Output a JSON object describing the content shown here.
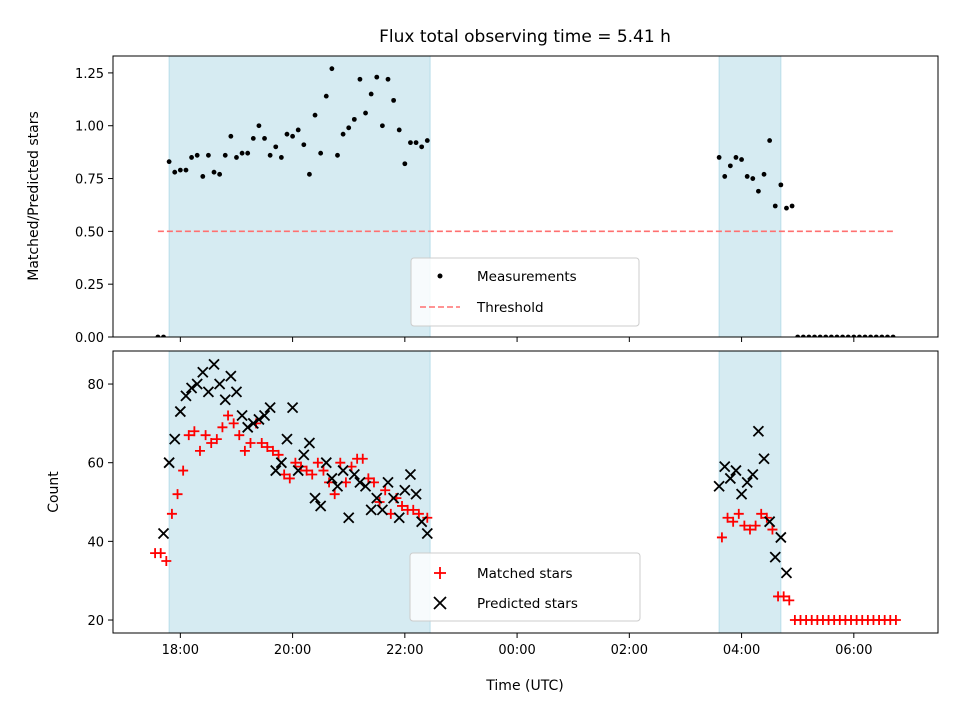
{
  "chart_data": [
    {
      "type": "scatter",
      "title": "Flux total observing time = 5.41 h",
      "xlabel": "",
      "ylabel": "Matched/Predicted stars",
      "ylim": [
        0.0,
        1.33
      ],
      "xlim": [
        -7.2,
        7.5
      ],
      "yticks": [
        "0.00",
        "0.25",
        "0.50",
        "0.75",
        "1.00",
        "1.25"
      ],
      "ytick_values": [
        0.0,
        0.25,
        0.5,
        0.75,
        1.0,
        1.25
      ],
      "shaded_intervals": [
        [
          -6.2,
          -1.55
        ],
        [
          3.6,
          4.7
        ]
      ],
      "threshold": {
        "name": "Threshold",
        "value": 0.5,
        "x_range": [
          -6.4,
          6.7
        ],
        "color": "#ff7070"
      },
      "legend": [
        "Measurements",
        "Threshold"
      ],
      "legend_loc": "lower center",
      "series": [
        {
          "name": "Measurements",
          "color": "#000000",
          "x": [
            -6.4,
            -6.3,
            -6.2,
            -6.1,
            -6.0,
            -5.9,
            -5.8,
            -5.7,
            -5.6,
            -5.5,
            -5.4,
            -5.3,
            -5.2,
            -5.1,
            -5.0,
            -4.9,
            -4.8,
            -4.7,
            -4.6,
            -4.5,
            -4.4,
            -4.3,
            -4.2,
            -4.1,
            -4.0,
            -3.9,
            -3.8,
            -3.7,
            -3.6,
            -3.5,
            -3.4,
            -3.3,
            -3.2,
            -3.1,
            -3.0,
            -2.9,
            -2.8,
            -2.7,
            -2.6,
            -2.5,
            -2.4,
            -2.3,
            -2.2,
            -2.1,
            -2.0,
            -1.9,
            -1.8,
            -1.7,
            -1.6,
            3.6,
            3.7,
            3.8,
            3.9,
            4.0,
            4.1,
            4.2,
            4.3,
            4.4,
            4.5,
            4.6,
            4.7,
            4.8,
            4.9,
            5.0,
            5.1,
            5.2,
            5.3,
            5.4,
            5.5,
            5.6,
            5.7,
            5.8,
            5.9,
            6.0,
            6.1,
            6.2,
            6.3,
            6.4,
            6.5,
            6.6,
            6.7
          ],
          "y": [
            0.0,
            0.0,
            0.83,
            0.78,
            0.79,
            0.79,
            0.85,
            0.86,
            0.76,
            0.86,
            0.78,
            0.77,
            0.86,
            0.95,
            0.85,
            0.87,
            0.87,
            0.94,
            1.0,
            0.94,
            0.86,
            0.9,
            0.85,
            0.96,
            0.95,
            0.98,
            0.91,
            0.77,
            1.05,
            0.87,
            1.14,
            1.27,
            0.86,
            0.96,
            0.99,
            1.03,
            1.22,
            1.06,
            1.15,
            1.23,
            1.0,
            1.22,
            1.12,
            0.98,
            0.82,
            0.92,
            0.92,
            0.9,
            0.93,
            0.85,
            0.76,
            0.81,
            0.85,
            0.84,
            0.76,
            0.75,
            0.69,
            0.77,
            0.93,
            0.62,
            0.72,
            0.61,
            0.62,
            0.0,
            0.0,
            0.0,
            0.0,
            0.0,
            0.0,
            0.0,
            0.0,
            0.0,
            0.0,
            0.0,
            0.0,
            0.0,
            0.0,
            0.0,
            0.0,
            0.0,
            0.0
          ]
        }
      ]
    },
    {
      "type": "scatter",
      "title": "",
      "xlabel": "Time (UTC)",
      "ylabel": "Count",
      "ylim": [
        16.7,
        88.4
      ],
      "xlim": [
        -7.2,
        7.5
      ],
      "yticks": [
        "20",
        "40",
        "60",
        "80"
      ],
      "ytick_values": [
        20,
        40,
        60,
        80
      ],
      "xtick_values": [
        -6,
        -4,
        -2,
        0,
        2,
        4,
        6
      ],
      "xticks": [
        "18:00",
        "20:00",
        "22:00",
        "00:00",
        "02:00",
        "04:00",
        "06:00"
      ],
      "shaded_intervals": [
        [
          -6.2,
          -1.55
        ],
        [
          3.6,
          4.7
        ]
      ],
      "legend": [
        "Matched stars",
        "Predicted stars"
      ],
      "legend_loc": "lower center",
      "series": [
        {
          "name": "Matched stars",
          "color": "#ff0000",
          "x": [
            -6.45,
            -6.35,
            -6.25,
            -6.15,
            -6.05,
            -5.95,
            -5.85,
            -5.75,
            -5.65,
            -5.55,
            -5.45,
            -5.35,
            -5.25,
            -5.15,
            -5.05,
            -4.95,
            -4.85,
            -4.75,
            -4.65,
            -4.55,
            -4.45,
            -4.35,
            -4.25,
            -4.15,
            -4.05,
            -3.95,
            -3.85,
            -3.75,
            -3.65,
            -3.55,
            -3.45,
            -3.35,
            -3.25,
            -3.15,
            -3.05,
            -2.95,
            -2.85,
            -2.75,
            -2.65,
            -2.55,
            -2.45,
            -2.35,
            -2.25,
            -2.15,
            -2.05,
            -1.95,
            -1.85,
            -1.75,
            -1.6,
            3.65,
            3.75,
            3.85,
            3.95,
            4.05,
            4.15,
            4.25,
            4.35,
            4.45,
            4.55,
            4.65,
            4.75,
            4.85,
            4.95,
            5.05,
            5.15,
            5.25,
            5.35,
            5.45,
            5.55,
            5.65,
            5.75,
            5.85,
            5.95,
            6.05,
            6.15,
            6.25,
            6.35,
            6.45,
            6.55,
            6.65,
            6.75
          ],
          "y": [
            37,
            37,
            35,
            47,
            52,
            58,
            67,
            68,
            63,
            67,
            65,
            66,
            69,
            72,
            70,
            67,
            63,
            65,
            70,
            65,
            64,
            63,
            62,
            57,
            56,
            60,
            59,
            58,
            57,
            60,
            58,
            55,
            52,
            60,
            55,
            59,
            61,
            61,
            56,
            55,
            50,
            53,
            47,
            51,
            49,
            48,
            48,
            47,
            46,
            41,
            46,
            45,
            47,
            44,
            43,
            44,
            47,
            46,
            43,
            26,
            26,
            25,
            20,
            20,
            20,
            20,
            20,
            20,
            20,
            20,
            20,
            20,
            20,
            20,
            20,
            20,
            20,
            20,
            20,
            20,
            20
          ]
        },
        {
          "name": "Predicted stars",
          "color": "#000000",
          "x": [
            -6.3,
            -6.2,
            -6.1,
            -6.0,
            -5.9,
            -5.8,
            -5.7,
            -5.6,
            -5.5,
            -5.4,
            -5.3,
            -5.2,
            -5.1,
            -5.0,
            -4.9,
            -4.8,
            -4.7,
            -4.6,
            -4.5,
            -4.4,
            -4.3,
            -4.2,
            -4.1,
            -4.0,
            -3.9,
            -3.8,
            -3.7,
            -3.6,
            -3.5,
            -3.4,
            -3.3,
            -3.2,
            -3.1,
            -3.0,
            -2.9,
            -2.8,
            -2.7,
            -2.6,
            -2.5,
            -2.4,
            -2.3,
            -2.2,
            -2.1,
            -2.0,
            -1.9,
            -1.8,
            -1.7,
            -1.6,
            3.6,
            3.7,
            3.8,
            3.9,
            4.0,
            4.1,
            4.2,
            4.3,
            4.4,
            4.5,
            4.6,
            4.7,
            4.8
          ],
          "y": [
            42,
            60,
            66,
            73,
            77,
            79,
            80,
            83,
            78,
            85,
            80,
            76,
            82,
            78,
            72,
            69,
            70,
            71,
            72,
            74,
            58,
            60,
            66,
            74,
            58,
            62,
            65,
            51,
            49,
            60,
            56,
            54,
            58,
            46,
            57,
            55,
            54,
            48,
            51,
            48,
            55,
            51,
            46,
            53,
            57,
            52,
            45,
            42,
            54,
            59,
            56,
            58,
            52,
            55,
            57,
            68,
            61,
            45,
            36,
            41,
            32
          ]
        }
      ]
    }
  ]
}
